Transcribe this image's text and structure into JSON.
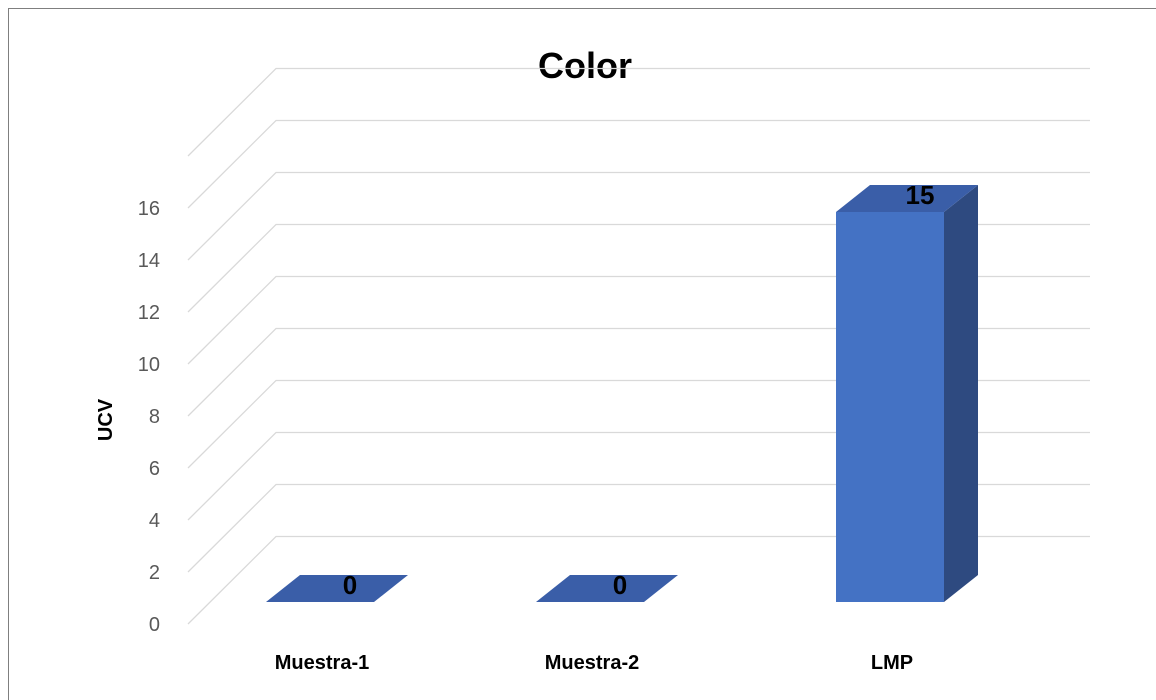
{
  "chart_data": {
    "type": "bar",
    "title": "Color",
    "ylabel": "UCV",
    "xlabel": "",
    "categories": [
      "Muestra-1",
      "Muestra-2",
      "LMP"
    ],
    "values": [
      0,
      0,
      15
    ],
    "data_labels": [
      "0",
      "0",
      "15"
    ],
    "ylim": [
      0,
      16
    ],
    "yticks": [
      0,
      2,
      4,
      6,
      8,
      10,
      12,
      14,
      16
    ],
    "grid": true,
    "style": "3d-column",
    "colors": {
      "front": "#4472c4",
      "side": "#2e4a80",
      "top": "#3a5ea8",
      "grid": "#d9d9d9"
    }
  }
}
